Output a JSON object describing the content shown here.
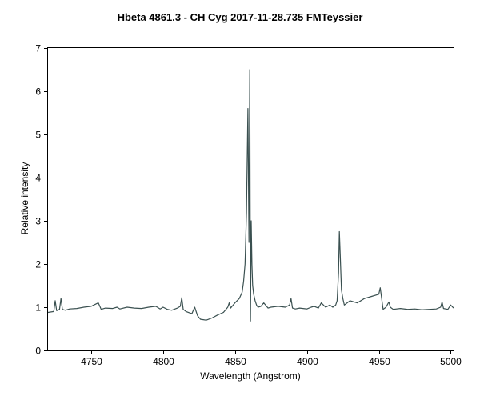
{
  "chart_data": {
    "type": "line",
    "title": "Hbeta 4861.3 - CH Cyg  2017-11-28.735  FMTeyssier",
    "xlabel": "Wavelength (Angstrom)",
    "ylabel": "Relative intensity",
    "xlim": [
      4720,
      5002
    ],
    "ylim": [
      0,
      7
    ],
    "xticks": [
      4750,
      4800,
      4850,
      4900,
      4950,
      5000
    ],
    "yticks": [
      0,
      1,
      2,
      3,
      4,
      5,
      6,
      7
    ],
    "grid": false,
    "line_color": "#3a5050",
    "series": [
      {
        "x": [
          4720,
          4724,
          4725,
          4726,
          4728,
          4729,
          4730,
          4732,
          4735,
          4740,
          4745,
          4750,
          4755,
          4757,
          4760,
          4765,
          4768,
          4770,
          4775,
          4780,
          4785,
          4790,
          4795,
          4798,
          4800,
          4803,
          4806,
          4810,
          4812,
          4813,
          4814,
          4816,
          4820,
          4822,
          4824,
          4826,
          4830,
          4834,
          4838,
          4842,
          4845,
          4846,
          4847,
          4848,
          4850,
          4853,
          4855,
          4856,
          4857,
          4858,
          4859,
          4859.7,
          4860.3,
          4860.8,
          4861.3,
          4861.8,
          4862.3,
          4863,
          4864,
          4865,
          4866,
          4868,
          4870,
          4873,
          4875,
          4880,
          4885,
          4888,
          4889,
          4890,
          4892,
          4895,
          4900,
          4903,
          4905,
          4908,
          4910,
          4913,
          4916,
          4918,
          4920,
          4921,
          4922,
          4922.6,
          4923.2,
          4924,
          4925,
          4926,
          4930,
          4935,
          4940,
          4945,
          4950,
          4951,
          4952,
          4953,
          4955,
          4957,
          4958,
          4960,
          4965,
          4970,
          4975,
          4980,
          4985,
          4990,
          4993,
          4994,
          4995,
          4998,
          5000,
          5002
        ],
        "y": [
          0.88,
          0.9,
          1.15,
          0.92,
          0.95,
          1.2,
          0.95,
          0.93,
          0.96,
          0.97,
          1.0,
          1.02,
          1.1,
          0.95,
          0.98,
          0.97,
          1.0,
          0.96,
          1.0,
          0.98,
          0.97,
          1.0,
          1.02,
          0.96,
          1.0,
          0.95,
          0.93,
          0.98,
          1.02,
          1.22,
          0.95,
          0.9,
          0.85,
          1.0,
          0.8,
          0.72,
          0.7,
          0.75,
          0.82,
          0.88,
          1.0,
          1.1,
          0.98,
          1.02,
          1.1,
          1.2,
          1.35,
          1.6,
          2.0,
          3.2,
          5.6,
          2.5,
          6.5,
          0.68,
          3.0,
          2.0,
          1.5,
          1.3,
          1.15,
          1.05,
          1.0,
          1.02,
          1.1,
          0.98,
          1.0,
          1.02,
          1.0,
          1.05,
          1.2,
          0.98,
          0.96,
          0.98,
          0.96,
          1.0,
          1.02,
          0.98,
          1.1,
          1.0,
          1.05,
          1.0,
          1.05,
          1.15,
          1.8,
          2.75,
          2.2,
          1.4,
          1.2,
          1.05,
          1.15,
          1.1,
          1.2,
          1.25,
          1.3,
          1.45,
          1.2,
          0.95,
          1.0,
          1.12,
          1.0,
          0.95,
          0.97,
          0.95,
          0.96,
          0.94,
          0.95,
          0.96,
          1.0,
          1.12,
          0.97,
          0.95,
          1.05,
          0.98
        ]
      }
    ]
  }
}
